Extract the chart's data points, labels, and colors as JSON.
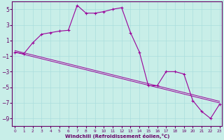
{
  "xlabel": "Windchill (Refroidissement éolien,°C)",
  "bg_color": "#c8eee8",
  "line_color": "#990099",
  "grid_color": "#aadddd",
  "spine_color": "#660066",
  "hours": [
    0,
    1,
    2,
    3,
    4,
    5,
    6,
    7,
    8,
    9,
    10,
    11,
    12,
    13,
    14,
    15,
    16,
    17,
    18,
    19,
    20,
    21,
    22,
    23
  ],
  "windchill": [
    -0.5,
    -0.7,
    0.7,
    1.8,
    2.0,
    2.2,
    2.3,
    5.5,
    4.5,
    4.5,
    4.7,
    5.0,
    5.2,
    2.0,
    -0.5,
    -4.8,
    -4.8,
    -3.0,
    -3.0,
    -3.3,
    -6.7,
    -8.1,
    -9.0,
    -7.2
  ],
  "reg1": [
    -0.5,
    -7.0
  ],
  "reg2": [
    -0.3,
    -6.8
  ],
  "ylim": [
    -10,
    6
  ],
  "yticks": [
    -9,
    -7,
    -5,
    -3,
    -1,
    1,
    3,
    5
  ],
  "xlim": [
    -0.3,
    23.3
  ],
  "xticks": [
    0,
    1,
    2,
    3,
    4,
    5,
    6,
    7,
    8,
    9,
    10,
    11,
    12,
    13,
    14,
    15,
    16,
    17,
    18,
    19,
    20,
    21,
    22,
    23
  ],
  "tick_color": "#660066",
  "xlabel_color": "#660066",
  "xlabel_fontsize": 5.0,
  "ytick_fontsize": 5.5,
  "xtick_fontsize": 4.2
}
